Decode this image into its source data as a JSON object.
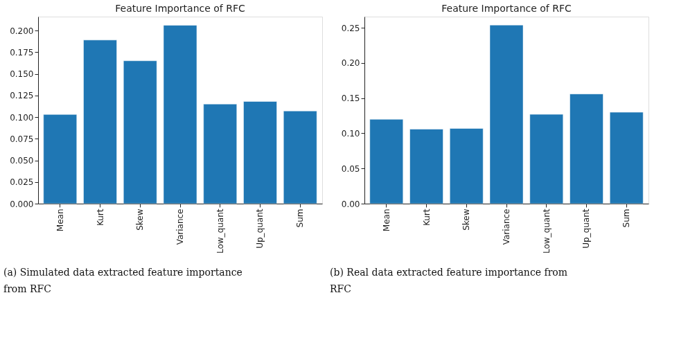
{
  "chart_data": [
    {
      "type": "bar",
      "title": "Feature Importance of RFC",
      "categories": [
        "Mean",
        "Kurt",
        "Skew",
        "Variance",
        "Low_quant",
        "Up_quant",
        "Sum"
      ],
      "values": [
        0.103,
        0.189,
        0.165,
        0.206,
        0.115,
        0.118,
        0.107
      ],
      "color": "#1f77b4",
      "ylim": [
        0,
        0.216
      ],
      "yticks": [
        {
          "value": 0,
          "label": "0.000"
        },
        {
          "value": 0.025,
          "label": "0.025"
        },
        {
          "value": 0.05,
          "label": "0.050"
        },
        {
          "value": 0.075,
          "label": "0.075"
        },
        {
          "value": 0.1,
          "label": "0.100"
        },
        {
          "value": 0.125,
          "label": "0.125"
        },
        {
          "value": 0.15,
          "label": "0.150"
        },
        {
          "value": 0.175,
          "label": "0.175"
        },
        {
          "value": 0.2,
          "label": "0.200"
        }
      ],
      "grid": false,
      "annotations": [
        "(a) Simulated data extracted feature importance from RFC"
      ]
    },
    {
      "type": "bar",
      "title": "Feature Importance of RFC",
      "categories": [
        "Mean",
        "Kurt",
        "Skew",
        "Variance",
        "Low_quant",
        "Up_quant",
        "Sum"
      ],
      "values": [
        0.12,
        0.106,
        0.107,
        0.254,
        0.127,
        0.156,
        0.13
      ],
      "color": "#1f77b4",
      "ylim": [
        0,
        0.266
      ],
      "yticks": [
        {
          "value": 0,
          "label": "0.00"
        },
        {
          "value": 0.05,
          "label": "0.05"
        },
        {
          "value": 0.1,
          "label": "0.10"
        },
        {
          "value": 0.15,
          "label": "0.15"
        },
        {
          "value": 0.2,
          "label": "0.20"
        },
        {
          "value": 0.25,
          "label": "0.25"
        }
      ],
      "grid": false,
      "annotations": [
        "(b) Real data extracted feature importance from RFC"
      ]
    }
  ]
}
